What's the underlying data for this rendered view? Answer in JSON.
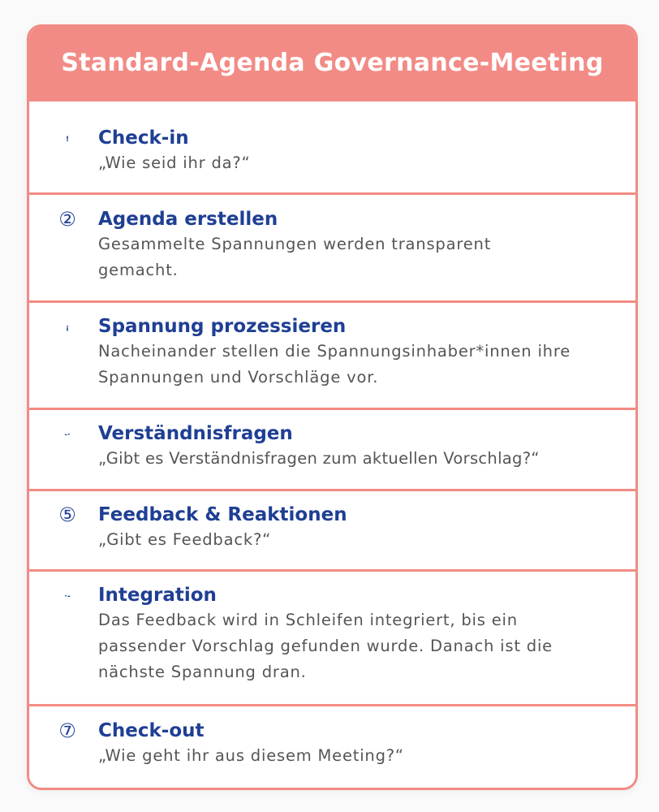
{
  "header": {
    "title": "Standard-Agenda Governance-Meeting"
  },
  "colors": {
    "accent": "#f28b85",
    "title": "#1f3f94",
    "text": "#555555"
  },
  "steps": [
    {
      "marker": "!",
      "title": "Check-in",
      "desc": "„Wie seid ihr da?“"
    },
    {
      "marker": "②",
      "title": "Agenda erstellen",
      "desc": "Gesammelte Spannungen werden transparent gemacht."
    },
    {
      "marker": "¡",
      "title": "Spannung prozessieren",
      "desc": "Nacheinander stellen die Spannungsinhaber*innen ihre Spannungen und Vorschläge vor."
    },
    {
      "marker": "-·",
      "title": "Verständnisfragen",
      "desc": "„Gibt es Verständnisfragen zum aktuellen Vorschlag?“"
    },
    {
      "marker": "⑤",
      "title": "Feedback & Reaktionen",
      "desc": "„Gibt es Feedback?“"
    },
    {
      "marker": "·-",
      "title": "Integration",
      "desc": "Das Feedback wird in Schleifen integriert, bis ein passender Vorschlag gefunden wurde. Danach ist die nächste Spannung dran."
    },
    {
      "marker": "⑦",
      "title": "Check-out",
      "desc": "„Wie geht ihr aus diesem Meeting?“"
    }
  ]
}
